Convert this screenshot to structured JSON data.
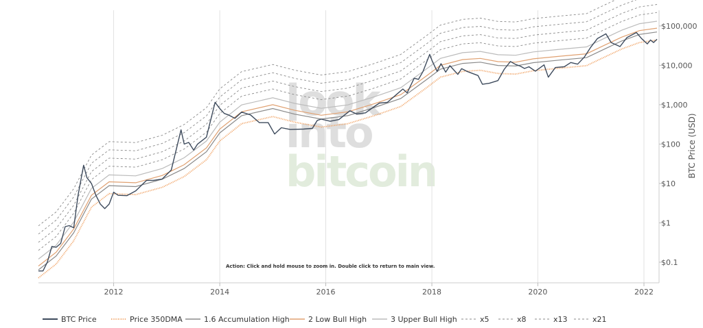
{
  "chart_data": {
    "type": "line",
    "title": "",
    "xlabel": "",
    "ylabel": "BTC Price (USD)",
    "y_scale": "log",
    "xlim": [
      "2010-08-01",
      "2022-04-15"
    ],
    "ylim": [
      0.03,
      250000
    ],
    "grid": "vertical lines at x ticks",
    "legend_position": "bottom",
    "x_ticks": [
      "2012",
      "2014",
      "2016",
      "2018",
      "2020",
      "2022"
    ],
    "y_ticks": [
      {
        "value": 0.1,
        "label": "$0.1"
      },
      {
        "value": 1,
        "label": "$1"
      },
      {
        "value": 10,
        "label": "$10"
      },
      {
        "value": 100,
        "label": "$100"
      },
      {
        "value": 1000,
        "label": "$1,000"
      },
      {
        "value": 10000,
        "label": "$10,000"
      },
      {
        "value": 100000,
        "label": "$100,000"
      }
    ],
    "annotation": "Action: Click and hold mouse to zoom in.  Double click to return to main view.",
    "watermark": [
      "look",
      "into",
      "bitcoin"
    ],
    "colors": {
      "btc": "#3d4a5c",
      "dma": "#f0a060",
      "acc": "#8a8a8a",
      "low": "#e0a070",
      "upper": "#bbbbbb",
      "mult": "#888888"
    },
    "btc_price": [
      [
        "2010-08-01",
        0.06
      ],
      [
        "2010-09-01",
        0.06
      ],
      [
        "2010-10-01",
        0.1
      ],
      [
        "2010-11-01",
        0.25
      ],
      [
        "2010-12-01",
        0.24
      ],
      [
        "2011-01-01",
        0.3
      ],
      [
        "2011-02-01",
        0.8
      ],
      [
        "2011-03-01",
        0.85
      ],
      [
        "2011-04-01",
        0.75
      ],
      [
        "2011-05-01",
        5
      ],
      [
        "2011-06-08",
        29
      ],
      [
        "2011-07-01",
        14
      ],
      [
        "2011-08-01",
        10
      ],
      [
        "2011-09-01",
        5
      ],
      [
        "2011-10-01",
        3
      ],
      [
        "2011-11-01",
        2.3
      ],
      [
        "2011-12-01",
        3
      ],
      [
        "2012-01-01",
        6
      ],
      [
        "2012-02-01",
        5
      ],
      [
        "2012-04-01",
        4.9
      ],
      [
        "2012-06-01",
        6.5
      ],
      [
        "2012-08-15",
        12
      ],
      [
        "2012-10-01",
        12
      ],
      [
        "2012-12-01",
        13
      ],
      [
        "2013-02-01",
        22
      ],
      [
        "2013-04-09",
        230
      ],
      [
        "2013-05-01",
        100
      ],
      [
        "2013-06-01",
        110
      ],
      [
        "2013-07-05",
        70
      ],
      [
        "2013-08-01",
        100
      ],
      [
        "2013-10-01",
        150
      ],
      [
        "2013-11-30",
        1150
      ],
      [
        "2014-01-01",
        800
      ],
      [
        "2014-02-01",
        600
      ],
      [
        "2014-03-01",
        550
      ],
      [
        "2014-04-15",
        450
      ],
      [
        "2014-06-01",
        650
      ],
      [
        "2014-08-01",
        550
      ],
      [
        "2014-10-01",
        350
      ],
      [
        "2014-12-01",
        350
      ],
      [
        "2015-01-14",
        180
      ],
      [
        "2015-03-01",
        260
      ],
      [
        "2015-05-01",
        235
      ],
      [
        "2015-08-01",
        240
      ],
      [
        "2015-10-01",
        250
      ],
      [
        "2015-11-04",
        400
      ],
      [
        "2015-12-01",
        430
      ],
      [
        "2016-02-01",
        380
      ],
      [
        "2016-04-01",
        420
      ],
      [
        "2016-06-15",
        700
      ],
      [
        "2016-08-01",
        580
      ],
      [
        "2016-10-01",
        620
      ],
      [
        "2016-12-01",
        900
      ],
      [
        "2017-01-05",
        1100
      ],
      [
        "2017-03-01",
        1150
      ],
      [
        "2017-05-01",
        1800
      ],
      [
        "2017-06-15",
        2500
      ],
      [
        "2017-07-15",
        2000
      ],
      [
        "2017-09-01",
        4700
      ],
      [
        "2017-10-01",
        4400
      ],
      [
        "2017-11-01",
        7000
      ],
      [
        "2017-12-17",
        19000
      ],
      [
        "2018-01-01",
        13500
      ],
      [
        "2018-02-06",
        7000
      ],
      [
        "2018-03-05",
        11000
      ],
      [
        "2018-04-06",
        6700
      ],
      [
        "2018-05-05",
        9800
      ],
      [
        "2018-06-29",
        5900
      ],
      [
        "2018-07-25",
        8200
      ],
      [
        "2018-09-01",
        7000
      ],
      [
        "2018-11-15",
        5500
      ],
      [
        "2018-12-15",
        3300
      ],
      [
        "2019-02-01",
        3500
      ],
      [
        "2019-04-01",
        4100
      ],
      [
        "2019-05-15",
        8000
      ],
      [
        "2019-06-26",
        12500
      ],
      [
        "2019-08-01",
        10500
      ],
      [
        "2019-09-01",
        9600
      ],
      [
        "2019-10-01",
        8300
      ],
      [
        "2019-11-01",
        9200
      ],
      [
        "2019-12-15",
        7100
      ],
      [
        "2020-02-13",
        10300
      ],
      [
        "2020-03-13",
        5000
      ],
      [
        "2020-05-01",
        8800
      ],
      [
        "2020-07-01",
        9200
      ],
      [
        "2020-08-15",
        11800
      ],
      [
        "2020-10-01",
        10700
      ],
      [
        "2020-11-15",
        16000
      ],
      [
        "2020-12-31",
        29000
      ],
      [
        "2021-02-15",
        48000
      ],
      [
        "2021-04-14",
        63000
      ],
      [
        "2021-05-20",
        38000
      ],
      [
        "2021-07-20",
        30000
      ],
      [
        "2021-09-06",
        51000
      ],
      [
        "2021-11-10",
        68000
      ],
      [
        "2021-12-15",
        48000
      ],
      [
        "2022-01-24",
        35000
      ],
      [
        "2022-02-15",
        44000
      ],
      [
        "2022-03-08",
        38000
      ],
      [
        "2022-04-01",
        46000
      ]
    ],
    "dma350": [
      [
        "2010-08-01",
        0.04
      ],
      [
        "2010-12-01",
        0.09
      ],
      [
        "2011-04-01",
        0.35
      ],
      [
        "2011-08-01",
        2.5
      ],
      [
        "2011-12-01",
        5.5
      ],
      [
        "2012-06-01",
        5.2
      ],
      [
        "2012-12-01",
        8
      ],
      [
        "2013-05-01",
        15
      ],
      [
        "2013-10-01",
        40
      ],
      [
        "2014-01-01",
        120
      ],
      [
        "2014-06-01",
        330
      ],
      [
        "2015-01-01",
        500
      ],
      [
        "2015-06-01",
        360
      ],
      [
        "2015-12-01",
        270
      ],
      [
        "2016-06-01",
        330
      ],
      [
        "2016-12-01",
        530
      ],
      [
        "2017-06-01",
        900
      ],
      [
        "2017-12-01",
        2800
      ],
      [
        "2018-03-01",
        5000
      ],
      [
        "2018-08-01",
        7000
      ],
      [
        "2018-12-01",
        7500
      ],
      [
        "2019-04-01",
        6200
      ],
      [
        "2019-08-01",
        6000
      ],
      [
        "2019-12-01",
        7300
      ],
      [
        "2020-06-01",
        8500
      ],
      [
        "2020-12-01",
        9800
      ],
      [
        "2021-04-01",
        16000
      ],
      [
        "2021-08-01",
        26000
      ],
      [
        "2021-12-01",
        38000
      ],
      [
        "2022-04-01",
        44000
      ]
    ],
    "band_multipliers": {
      "acc": 1.6,
      "low": 2,
      "upper": 3,
      "x5": 5,
      "x8": 8,
      "x13": 13,
      "x21": 21
    },
    "legend": [
      {
        "label": "BTC Price",
        "key": "btc"
      },
      {
        "label": "Price 350DMA",
        "key": "dma"
      },
      {
        "label": "1.6 Accumulation High",
        "key": "acc"
      },
      {
        "label": "2 Low Bull High",
        "key": "low"
      },
      {
        "label": "3 Upper Bull High",
        "key": "upper"
      },
      {
        "label": "x5",
        "key": "x5"
      },
      {
        "label": "x8",
        "key": "x8"
      },
      {
        "label": "x13",
        "key": "x13"
      },
      {
        "label": "x21",
        "key": "x21"
      }
    ]
  }
}
